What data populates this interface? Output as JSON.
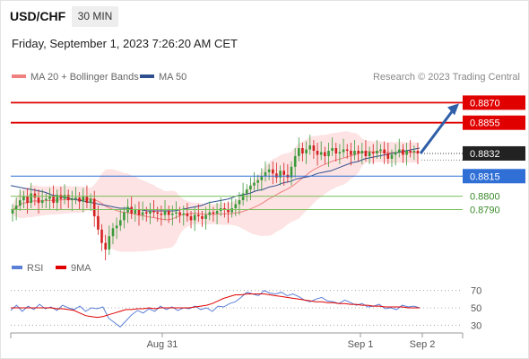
{
  "header": {
    "symbol": "USD/CHF",
    "timeframe": "30 MIN",
    "datetime": "Friday, September 1, 2023 7:26:20 AM CET"
  },
  "legend_price": [
    {
      "label": "MA 20 + Bollinger Bands",
      "color": "#f08080"
    },
    {
      "label": "MA 50",
      "color": "#2f4f8f"
    }
  ],
  "legend_rsi": [
    {
      "label": "RSI",
      "color": "#5b7fd6"
    },
    {
      "label": "9MA",
      "color": "#e00000"
    }
  ],
  "credit": "Research © 2023 Trading Central",
  "colors": {
    "resistance": "#e00000",
    "pivot": "#2f6fd6",
    "support": "#7bbf5a",
    "support_text": "#3a8a2a",
    "last_price_bg": "#222222",
    "candle_up": "#3a9a3a",
    "candle_down": "#d42020",
    "bands_fill": "#fde3e3",
    "ma20": "#f08080",
    "ma50": "#2f4f8f",
    "projection_arrow": "#2f5fa8"
  },
  "chart_data": [
    {
      "type": "candlestick",
      "title": "USD/CHF 30 MIN",
      "ylim": [
        0.8748,
        0.8881
      ],
      "x_ticks": [
        "Aug 31",
        "Sep 1",
        "Sep 2"
      ],
      "levels": [
        {
          "value": 0.887,
          "label": "0.8870",
          "kind": "resistance"
        },
        {
          "value": 0.8855,
          "label": "0.8855",
          "kind": "resistance"
        },
        {
          "value": 0.8832,
          "label": "0.8832",
          "kind": "last"
        },
        {
          "value": 0.8815,
          "label": "0.8815",
          "kind": "pivot"
        },
        {
          "value": 0.88,
          "label": "0.8800",
          "kind": "support"
        },
        {
          "value": 0.879,
          "label": "0.8790",
          "kind": "support"
        }
      ],
      "projection": {
        "from": 0.8832,
        "to": 0.887
      },
      "ohlc_close": [
        0.879,
        0.8793,
        0.8797,
        0.88,
        0.8795,
        0.8802,
        0.8799,
        0.8795,
        0.8797,
        0.8798,
        0.88,
        0.8795,
        0.8801,
        0.8798,
        0.8801,
        0.8797,
        0.8798,
        0.8799,
        0.8796,
        0.88,
        0.8795,
        0.8798,
        0.8785,
        0.8775,
        0.8765,
        0.876,
        0.877,
        0.8776,
        0.8778,
        0.8782,
        0.8788,
        0.8792,
        0.8787,
        0.879,
        0.8786,
        0.8788,
        0.8787,
        0.8789,
        0.8788,
        0.8787,
        0.8786,
        0.8789,
        0.8786,
        0.8787,
        0.8788,
        0.8786,
        0.8787,
        0.8785,
        0.8782,
        0.8786,
        0.8785,
        0.8783,
        0.8786,
        0.8788,
        0.8787,
        0.8789,
        0.8791,
        0.879,
        0.8788,
        0.8791,
        0.8794,
        0.8797,
        0.8802,
        0.8805,
        0.8808,
        0.881,
        0.8812,
        0.8815,
        0.8818,
        0.882,
        0.8817,
        0.8814,
        0.8819,
        0.8816,
        0.8814,
        0.8822,
        0.883,
        0.8836,
        0.8832,
        0.8835,
        0.8838,
        0.8834,
        0.8831,
        0.8833,
        0.883,
        0.8834,
        0.8836,
        0.8832,
        0.8833,
        0.8835,
        0.8834,
        0.8831,
        0.8834,
        0.8832,
        0.8834,
        0.883,
        0.8833,
        0.8832,
        0.8834,
        0.8835,
        0.8832,
        0.8828,
        0.8831,
        0.8833,
        0.8835,
        0.8831,
        0.8834,
        0.8833,
        0.8834,
        0.8832
      ],
      "ma50": [
        0.8808,
        0.8807,
        0.8806,
        0.8805,
        0.8804,
        0.8803,
        0.8801,
        0.88,
        0.8799,
        0.8798,
        0.8797,
        0.8796,
        0.8795,
        0.8794,
        0.8793,
        0.8792,
        0.8791,
        0.8791,
        0.879,
        0.879,
        0.8789,
        0.8789,
        0.8789,
        0.8789,
        0.8789,
        0.879,
        0.8791,
        0.8792,
        0.8793,
        0.8795,
        0.8796,
        0.8797,
        0.8798,
        0.88,
        0.8801,
        0.8802,
        0.8804,
        0.8805,
        0.8807,
        0.8808,
        0.881,
        0.8811,
        0.8813,
        0.8814,
        0.8815,
        0.8817,
        0.8818,
        0.8819,
        0.8821,
        0.8823,
        0.8825,
        0.8826,
        0.8828,
        0.8829,
        0.883,
        0.8831,
        0.8832,
        0.8833,
        0.8834,
        0.8835,
        0.8836
      ]
    },
    {
      "type": "line",
      "series": [
        {
          "name": "RSI"
        },
        {
          "name": "9MA"
        }
      ],
      "ylim": [
        20,
        80
      ],
      "y_ticks": [
        70,
        50,
        30
      ],
      "rsi": [
        47,
        53,
        46,
        52,
        48,
        54,
        49,
        51,
        47,
        53,
        50,
        48,
        52,
        46,
        50,
        49,
        51,
        38,
        33,
        28,
        35,
        42,
        47,
        44,
        49,
        46,
        52,
        48,
        51,
        47,
        50,
        49,
        52,
        48,
        50,
        46,
        52,
        51,
        55,
        57,
        62,
        68,
        66,
        64,
        70,
        67,
        66,
        68,
        64,
        66,
        63,
        59,
        57,
        60,
        62,
        58,
        57,
        55,
        59,
        56,
        53,
        55,
        51,
        52,
        54,
        49,
        50,
        48,
        53,
        51,
        52,
        50
      ],
      "ma9": [
        50,
        50,
        50,
        50,
        50,
        50,
        50,
        50,
        49,
        49,
        48,
        47,
        44,
        41,
        40,
        39,
        40,
        42,
        44,
        46,
        48,
        48,
        49,
        49,
        50,
        49,
        50,
        50,
        50,
        50,
        50,
        50,
        51,
        52,
        53,
        55,
        58,
        61,
        63,
        65,
        65,
        66,
        66,
        66,
        66,
        65,
        64,
        63,
        62,
        61,
        60,
        59,
        58,
        57,
        57,
        56,
        56,
        55,
        55,
        54,
        54,
        53,
        53,
        52,
        52,
        51,
        51,
        51,
        51,
        50,
        50,
        50
      ]
    }
  ],
  "rsi_ticks": [
    "70",
    "50",
    "30"
  ]
}
